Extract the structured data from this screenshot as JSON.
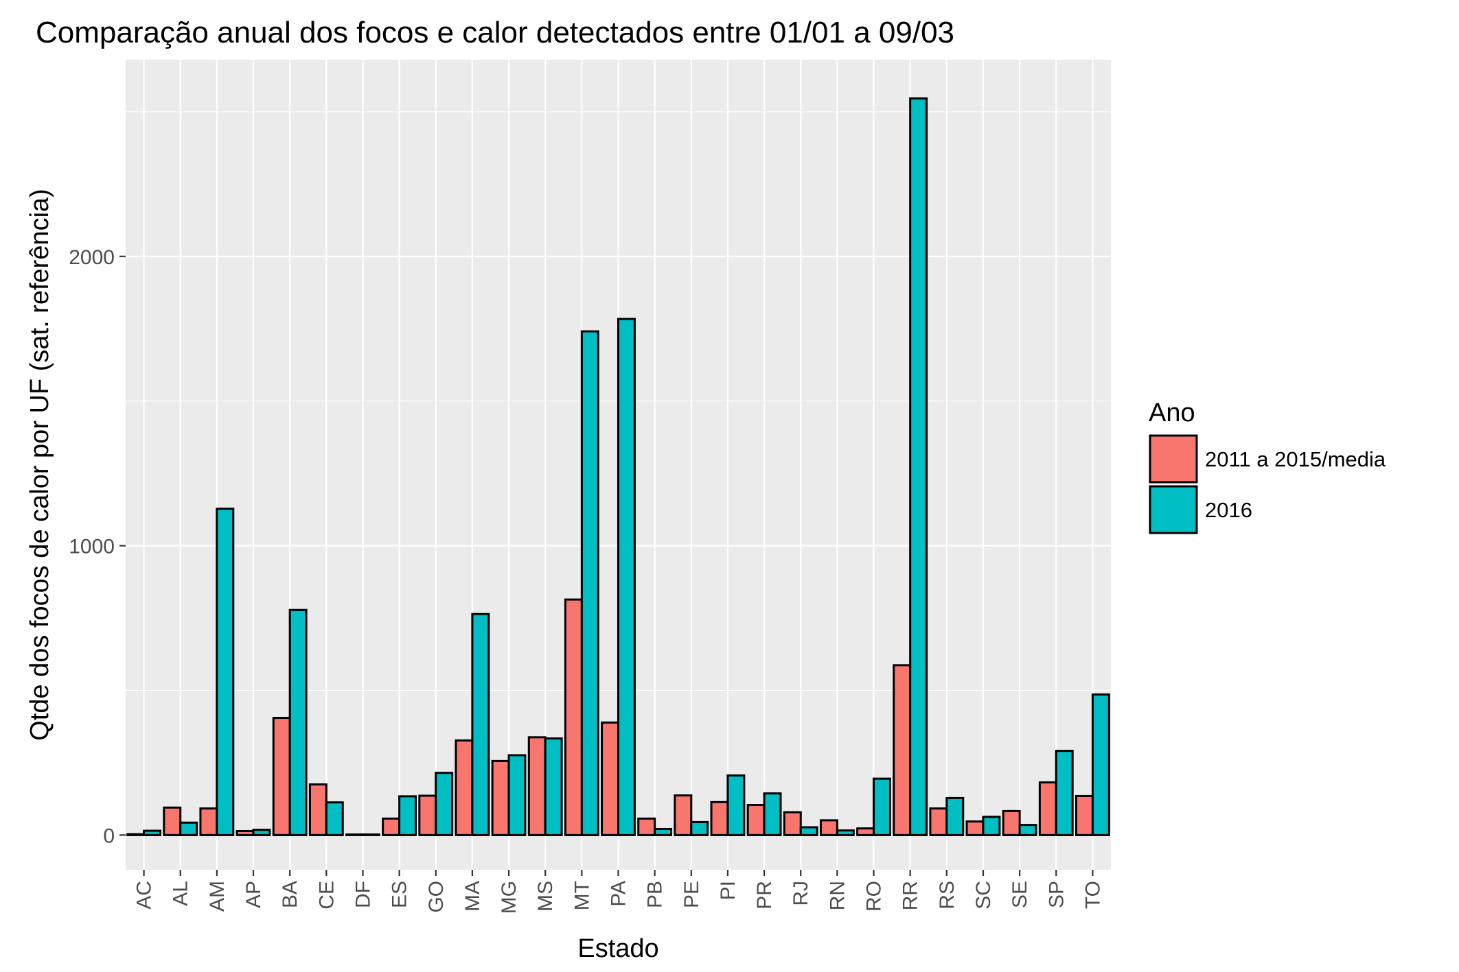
{
  "chart_data": {
    "type": "bar",
    "title": "Comparação anual dos focos e calor detectados entre 01/01 a 09/03",
    "xlabel": "Estado",
    "ylabel": "Qtde dos focos de calor por UF  (sat. referência)",
    "categories": [
      "AC",
      "AL",
      "AM",
      "AP",
      "BA",
      "CE",
      "DF",
      "ES",
      "GO",
      "MA",
      "MG",
      "MS",
      "MT",
      "PA",
      "PB",
      "PE",
      "PI",
      "PR",
      "RJ",
      "RN",
      "RO",
      "RR",
      "RS",
      "SC",
      "SE",
      "SP",
      "TO"
    ],
    "series": [
      {
        "name": "2011 a 2015/media",
        "color": "#F8766D",
        "values": [
          3,
          95,
          92,
          14,
          405,
          175,
          2,
          57,
          136,
          327,
          256,
          338,
          814,
          389,
          57,
          137,
          114,
          104,
          79,
          51,
          23,
          587,
          92,
          47,
          83,
          182,
          135
        ]
      },
      {
        "name": "2016",
        "color": "#00BFC4",
        "values": [
          15,
          43,
          1128,
          18,
          778,
          113,
          2,
          134,
          215,
          764,
          276,
          334,
          1741,
          1784,
          21,
          45,
          206,
          144,
          27,
          16,
          195,
          2546,
          128,
          63,
          35,
          291,
          486
        ]
      }
    ],
    "ylim": [
      -120,
      2680
    ],
    "yticks": [
      0,
      1000,
      2000
    ],
    "ytick_labels": [
      "0",
      "1000",
      "2000"
    ],
    "grid": true,
    "legend": {
      "title": "Ano",
      "placement": "right"
    }
  }
}
